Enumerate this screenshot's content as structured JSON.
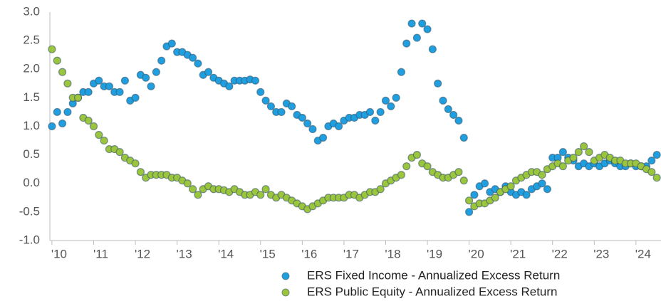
{
  "chart_data": {
    "type": "scatter",
    "x": [
      2010,
      2010.125,
      2010.25,
      2010.375,
      2010.5,
      2010.625,
      2010.75,
      2010.875,
      2011,
      2011.125,
      2011.25,
      2011.375,
      2011.5,
      2011.625,
      2011.75,
      2011.875,
      2012,
      2012.125,
      2012.25,
      2012.375,
      2012.5,
      2012.625,
      2012.75,
      2012.875,
      2013,
      2013.125,
      2013.25,
      2013.375,
      2013.5,
      2013.625,
      2013.75,
      2013.875,
      2014,
      2014.125,
      2014.25,
      2014.375,
      2014.5,
      2014.625,
      2014.75,
      2014.875,
      2015,
      2015.125,
      2015.25,
      2015.375,
      2015.5,
      2015.625,
      2015.75,
      2015.875,
      2016,
      2016.125,
      2016.25,
      2016.375,
      2016.5,
      2016.625,
      2016.75,
      2016.875,
      2017,
      2017.125,
      2017.25,
      2017.375,
      2017.5,
      2017.625,
      2017.75,
      2017.875,
      2018,
      2018.125,
      2018.25,
      2018.375,
      2018.5,
      2018.625,
      2018.75,
      2018.875,
      2019,
      2019.125,
      2019.25,
      2019.375,
      2019.5,
      2019.625,
      2019.75,
      2019.875,
      2020,
      2020.125,
      2020.25,
      2020.375,
      2020.5,
      2020.625,
      2020.75,
      2020.875,
      2021,
      2021.125,
      2021.25,
      2021.375,
      2021.5,
      2021.625,
      2021.75,
      2021.875,
      2022,
      2022.125,
      2022.25,
      2022.375,
      2022.5,
      2022.625,
      2022.75,
      2022.875,
      2023,
      2023.125,
      2023.25,
      2023.375,
      2023.5,
      2023.625,
      2023.75,
      2023.875,
      2024,
      2024.125,
      2024.25,
      2024.375,
      2024.5
    ],
    "series": [
      {
        "name": "ERS Fixed Income - Annualized Excess Return",
        "color": "#1f9fe0",
        "values": [
          1.0,
          1.25,
          1.05,
          1.25,
          1.4,
          1.5,
          1.6,
          1.6,
          1.75,
          1.8,
          1.7,
          1.7,
          1.6,
          1.6,
          1.8,
          1.45,
          1.5,
          1.9,
          1.85,
          1.7,
          1.95,
          2.15,
          2.4,
          2.45,
          2.3,
          2.3,
          2.25,
          2.2,
          2.1,
          1.9,
          1.95,
          1.85,
          1.8,
          1.75,
          1.7,
          1.8,
          1.8,
          1.8,
          1.82,
          1.8,
          1.6,
          1.45,
          1.35,
          1.25,
          1.25,
          1.4,
          1.35,
          1.2,
          1.15,
          1.05,
          0.95,
          0.75,
          0.8,
          1.0,
          1.05,
          1.0,
          1.1,
          1.15,
          1.15,
          1.2,
          1.2,
          1.25,
          1.1,
          1.25,
          1.45,
          1.35,
          1.5,
          1.95,
          2.45,
          2.8,
          2.55,
          2.8,
          2.7,
          2.35,
          1.75,
          1.45,
          1.3,
          1.2,
          1.1,
          0.8,
          -0.5,
          -0.2,
          -0.05,
          0.0,
          -0.15,
          -0.1,
          -0.15,
          -0.05,
          -0.15,
          -0.2,
          -0.15,
          -0.2,
          -0.1,
          -0.05,
          0.0,
          -0.1,
          0.45,
          0.45,
          0.55,
          0.45,
          0.4,
          0.3,
          0.35,
          0.3,
          0.35,
          0.3,
          0.35,
          0.4,
          0.35,
          0.3,
          0.3,
          0.35,
          0.3,
          0.3,
          0.3,
          0.4,
          0.5
        ]
      },
      {
        "name": "ERS Public Equity - Annualized Excess Return",
        "color": "#9bc53d",
        "values": [
          2.35,
          2.15,
          1.95,
          1.75,
          1.5,
          1.5,
          1.15,
          1.1,
          1.0,
          0.85,
          0.75,
          0.6,
          0.6,
          0.55,
          0.45,
          0.4,
          0.35,
          0.2,
          0.1,
          0.15,
          0.15,
          0.15,
          0.15,
          0.1,
          0.1,
          0.05,
          0.0,
          -0.1,
          -0.2,
          -0.1,
          -0.05,
          -0.1,
          -0.1,
          -0.12,
          -0.15,
          -0.1,
          -0.15,
          -0.2,
          -0.2,
          -0.15,
          -0.2,
          -0.1,
          -0.2,
          -0.25,
          -0.2,
          -0.25,
          -0.3,
          -0.35,
          -0.4,
          -0.45,
          -0.4,
          -0.35,
          -0.3,
          -0.25,
          -0.25,
          -0.25,
          -0.25,
          -0.2,
          -0.2,
          -0.25,
          -0.2,
          -0.15,
          -0.15,
          -0.1,
          0.0,
          0.05,
          0.1,
          0.15,
          0.3,
          0.45,
          0.5,
          0.35,
          0.3,
          0.2,
          0.15,
          0.1,
          0.1,
          0.15,
          0.2,
          0.05,
          -0.3,
          -0.4,
          -0.35,
          -0.35,
          -0.3,
          -0.25,
          -0.15,
          -0.1,
          -0.05,
          0.05,
          0.1,
          0.15,
          0.2,
          0.2,
          0.15,
          0.25,
          0.3,
          0.35,
          0.3,
          0.4,
          0.45,
          0.55,
          0.65,
          0.55,
          0.4,
          0.45,
          0.5,
          0.45,
          0.4,
          0.4,
          0.35,
          0.35,
          0.35,
          0.3,
          0.25,
          0.2,
          0.1
        ]
      }
    ],
    "xlim": [
      2009.95,
      2024.6
    ],
    "xticks": [
      {
        "value": 2010,
        "label": "'10"
      },
      {
        "value": 2011,
        "label": "'11"
      },
      {
        "value": 2012,
        "label": "'12"
      },
      {
        "value": 2013,
        "label": "'13"
      },
      {
        "value": 2014,
        "label": "'14"
      },
      {
        "value": 2015,
        "label": "'15"
      },
      {
        "value": 2016,
        "label": "'16"
      },
      {
        "value": 2017,
        "label": "'17"
      },
      {
        "value": 2018,
        "label": "'18"
      },
      {
        "value": 2019,
        "label": "'19"
      },
      {
        "value": 2020,
        "label": "'20"
      },
      {
        "value": 2021,
        "label": "'21"
      },
      {
        "value": 2022,
        "label": "'22"
      },
      {
        "value": 2023,
        "label": "'23"
      },
      {
        "value": 2024,
        "label": "'24"
      }
    ],
    "ylim": [
      -1,
      3
    ],
    "yticks": [
      {
        "value": -1,
        "label": "-1.0"
      },
      {
        "value": -0.5,
        "label": "-0.5"
      },
      {
        "value": 0,
        "label": "0.0"
      },
      {
        "value": 0.5,
        "label": "0.5"
      },
      {
        "value": 1,
        "label": "1.0"
      },
      {
        "value": 1.5,
        "label": "1.5"
      },
      {
        "value": 2,
        "label": "2.0"
      },
      {
        "value": 2.5,
        "label": "2.5"
      },
      {
        "value": 3,
        "label": "3.0"
      }
    ],
    "grid": false,
    "legend": "bottom-right"
  }
}
